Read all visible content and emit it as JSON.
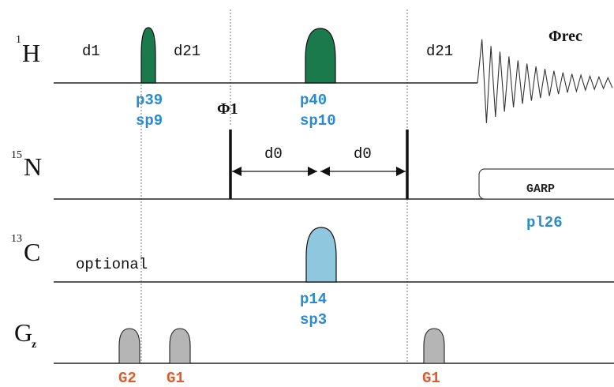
{
  "channels": {
    "h": {
      "sup": "1",
      "main": "H",
      "sub": ""
    },
    "n": {
      "sup": "15",
      "main": "N",
      "sub": ""
    },
    "c": {
      "sup": "13",
      "main": "C",
      "sub": ""
    },
    "gz": {
      "sup": "",
      "main": "G",
      "sub": "z"
    }
  },
  "delays": {
    "d1": "d1",
    "d21_left": "d21",
    "d21_right": "d21",
    "d0_left": "d0",
    "d0_right": "d0"
  },
  "pulses": {
    "p39": "p39",
    "sp9": "sp9",
    "p40": "p40",
    "sp10": "sp10",
    "p14": "p14",
    "sp3": "sp3",
    "p126": "pl26"
  },
  "phases": {
    "phi1": "Φ1",
    "phirec": "Φrec"
  },
  "decoupling": {
    "label": "GARP"
  },
  "note": {
    "optional": "optional"
  },
  "gradients": {
    "g2": "G2",
    "g1_left": "G1",
    "g1_right": "G1"
  },
  "colors": {
    "h_pulse": "#1a7a4c",
    "c_pulse": "#8fc7de",
    "gradient": "#b5b5b5",
    "param_blue": "#2a8ccf",
    "note_red": "#e0533a",
    "grad_label": "#e05a2a"
  }
}
